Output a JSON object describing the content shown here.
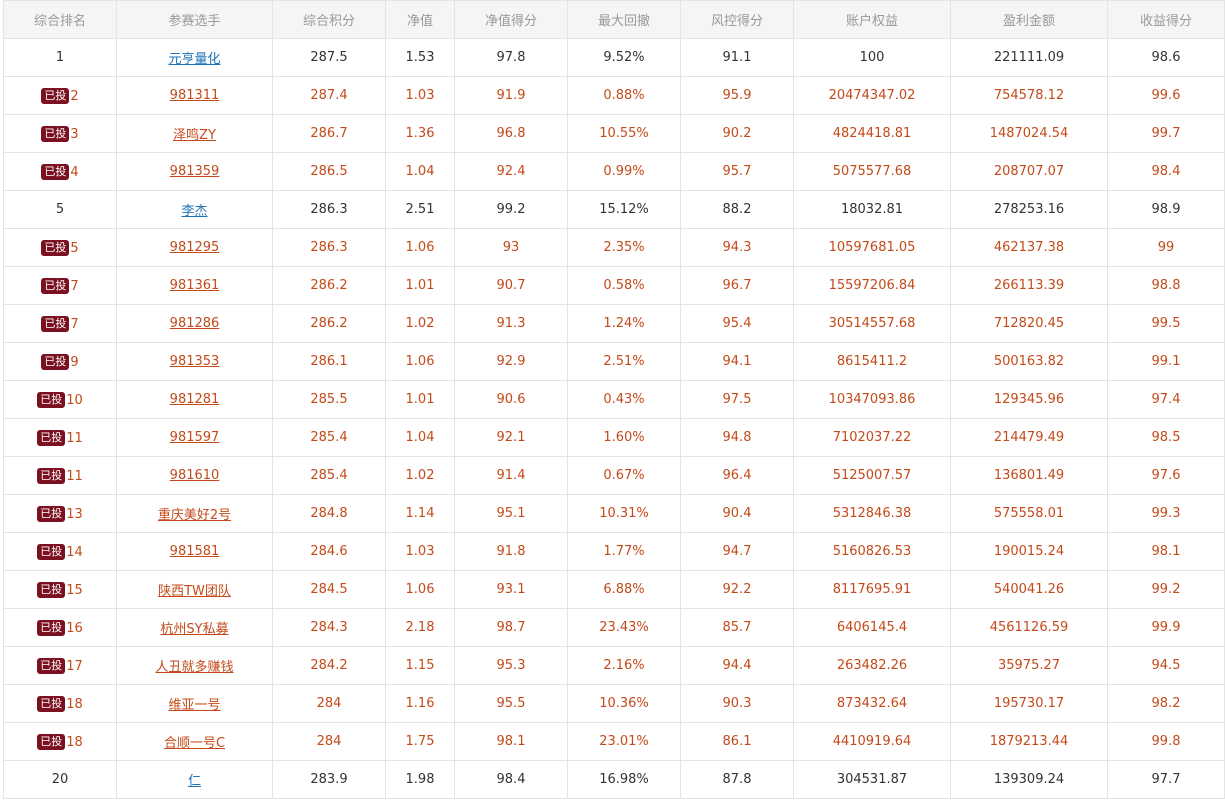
{
  "columns": [
    "综合排名",
    "参赛选手",
    "综合积分",
    "净值",
    "净值得分",
    "最大回撤",
    "风控得分",
    "账户权益",
    "盈利金额",
    "收益得分"
  ],
  "rows": [
    {
      "badge": "",
      "rank": "1",
      "name": "元亨量化",
      "score": "287.5",
      "nav": "1.53",
      "nav_score": "97.8",
      "drawdown": "9.52%",
      "risk_score": "91.1",
      "equity": "100",
      "profit": "221111.09",
      "return_score": "98.6"
    },
    {
      "badge": "已投",
      "rank": "2",
      "name": "981311",
      "score": "287.4",
      "nav": "1.03",
      "nav_score": "91.9",
      "drawdown": "0.88%",
      "risk_score": "95.9",
      "equity": "20474347.02",
      "profit": "754578.12",
      "return_score": "99.6"
    },
    {
      "badge": "已投",
      "rank": "3",
      "name": "泽鸣ZY",
      "score": "286.7",
      "nav": "1.36",
      "nav_score": "96.8",
      "drawdown": "10.55%",
      "risk_score": "90.2",
      "equity": "4824418.81",
      "profit": "1487024.54",
      "return_score": "99.7"
    },
    {
      "badge": "已投",
      "rank": "4",
      "name": "981359",
      "score": "286.5",
      "nav": "1.04",
      "nav_score": "92.4",
      "drawdown": "0.99%",
      "risk_score": "95.7",
      "equity": "5075577.68",
      "profit": "208707.07",
      "return_score": "98.4"
    },
    {
      "badge": "",
      "rank": "5",
      "name": "李杰",
      "score": "286.3",
      "nav": "2.51",
      "nav_score": "99.2",
      "drawdown": "15.12%",
      "risk_score": "88.2",
      "equity": "18032.81",
      "profit": "278253.16",
      "return_score": "98.9"
    },
    {
      "badge": "已投",
      "rank": "5",
      "name": "981295",
      "score": "286.3",
      "nav": "1.06",
      "nav_score": "93",
      "drawdown": "2.35%",
      "risk_score": "94.3",
      "equity": "10597681.05",
      "profit": "462137.38",
      "return_score": "99"
    },
    {
      "badge": "已投",
      "rank": "7",
      "name": "981361",
      "score": "286.2",
      "nav": "1.01",
      "nav_score": "90.7",
      "drawdown": "0.58%",
      "risk_score": "96.7",
      "equity": "15597206.84",
      "profit": "266113.39",
      "return_score": "98.8"
    },
    {
      "badge": "已投",
      "rank": "7",
      "name": "981286",
      "score": "286.2",
      "nav": "1.02",
      "nav_score": "91.3",
      "drawdown": "1.24%",
      "risk_score": "95.4",
      "equity": "30514557.68",
      "profit": "712820.45",
      "return_score": "99.5"
    },
    {
      "badge": "已投",
      "rank": "9",
      "name": "981353",
      "score": "286.1",
      "nav": "1.06",
      "nav_score": "92.9",
      "drawdown": "2.51%",
      "risk_score": "94.1",
      "equity": "8615411.2",
      "profit": "500163.82",
      "return_score": "99.1"
    },
    {
      "badge": "已投",
      "rank": "10",
      "name": "981281",
      "score": "285.5",
      "nav": "1.01",
      "nav_score": "90.6",
      "drawdown": "0.43%",
      "risk_score": "97.5",
      "equity": "10347093.86",
      "profit": "129345.96",
      "return_score": "97.4"
    },
    {
      "badge": "已投",
      "rank": "11",
      "name": "981597",
      "score": "285.4",
      "nav": "1.04",
      "nav_score": "92.1",
      "drawdown": "1.60%",
      "risk_score": "94.8",
      "equity": "7102037.22",
      "profit": "214479.49",
      "return_score": "98.5"
    },
    {
      "badge": "已投",
      "rank": "11",
      "name": "981610",
      "score": "285.4",
      "nav": "1.02",
      "nav_score": "91.4",
      "drawdown": "0.67%",
      "risk_score": "96.4",
      "equity": "5125007.57",
      "profit": "136801.49",
      "return_score": "97.6"
    },
    {
      "badge": "已投",
      "rank": "13",
      "name": "重庆美好2号",
      "score": "284.8",
      "nav": "1.14",
      "nav_score": "95.1",
      "drawdown": "10.31%",
      "risk_score": "90.4",
      "equity": "5312846.38",
      "profit": "575558.01",
      "return_score": "99.3"
    },
    {
      "badge": "已投",
      "rank": "14",
      "name": "981581",
      "score": "284.6",
      "nav": "1.03",
      "nav_score": "91.8",
      "drawdown": "1.77%",
      "risk_score": "94.7",
      "equity": "5160826.53",
      "profit": "190015.24",
      "return_score": "98.1"
    },
    {
      "badge": "已投",
      "rank": "15",
      "name": "陕西TW团队",
      "score": "284.5",
      "nav": "1.06",
      "nav_score": "93.1",
      "drawdown": "6.88%",
      "risk_score": "92.2",
      "equity": "8117695.91",
      "profit": "540041.26",
      "return_score": "99.2"
    },
    {
      "badge": "已投",
      "rank": "16",
      "name": "杭州SY私募",
      "score": "284.3",
      "nav": "2.18",
      "nav_score": "98.7",
      "drawdown": "23.43%",
      "risk_score": "85.7",
      "equity": "6406145.4",
      "profit": "4561126.59",
      "return_score": "99.9"
    },
    {
      "badge": "已投",
      "rank": "17",
      "name": "人丑就多赚钱",
      "score": "284.2",
      "nav": "1.15",
      "nav_score": "95.3",
      "drawdown": "2.16%",
      "risk_score": "94.4",
      "equity": "263482.26",
      "profit": "35975.27",
      "return_score": "94.5"
    },
    {
      "badge": "已投",
      "rank": "18",
      "name": "维亚一号",
      "score": "284",
      "nav": "1.16",
      "nav_score": "95.5",
      "drawdown": "10.36%",
      "risk_score": "90.3",
      "equity": "873432.64",
      "profit": "195730.17",
      "return_score": "98.2"
    },
    {
      "badge": "已投",
      "rank": "18",
      "name": "合顺一号C",
      "score": "284",
      "nav": "1.75",
      "nav_score": "98.1",
      "drawdown": "23.01%",
      "risk_score": "86.1",
      "equity": "4410919.64",
      "profit": "1879213.44",
      "return_score": "99.8"
    },
    {
      "badge": "",
      "rank": "20",
      "name": "仁",
      "score": "283.9",
      "nav": "1.98",
      "nav_score": "98.4",
      "drawdown": "16.98%",
      "risk_score": "87.8",
      "equity": "304531.87",
      "profit": "139309.24",
      "return_score": "97.7"
    }
  ],
  "colors": {
    "invested_text": "#c44a1a",
    "normal_link": "#1f73b8",
    "badge_bg": "#7a1020"
  }
}
